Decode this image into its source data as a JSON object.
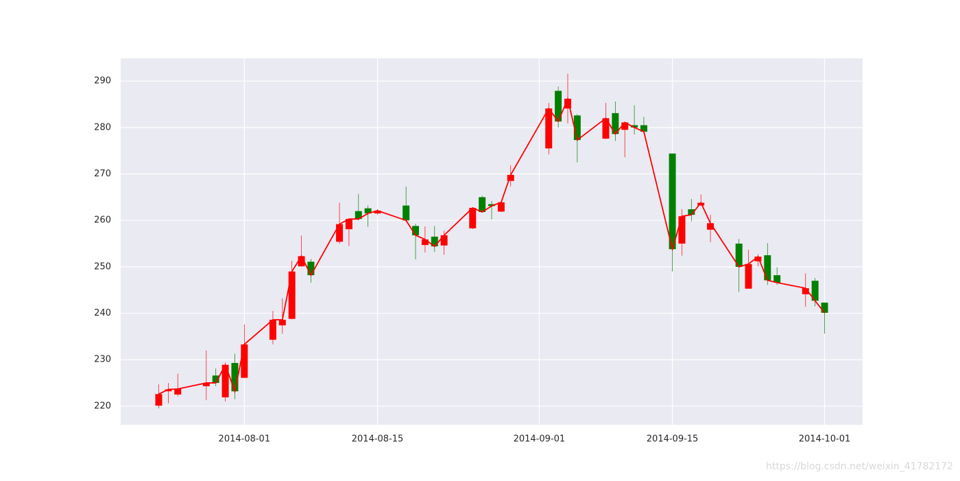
{
  "chart_data": {
    "type": "candlestick",
    "x": [
      "2014-07-23",
      "2014-07-24",
      "2014-07-25",
      "2014-07-28",
      "2014-07-29",
      "2014-07-30",
      "2014-07-31",
      "2014-08-01",
      "2014-08-04",
      "2014-08-05",
      "2014-08-06",
      "2014-08-07",
      "2014-08-08",
      "2014-08-11",
      "2014-08-12",
      "2014-08-13",
      "2014-08-14",
      "2014-08-15",
      "2014-08-18",
      "2014-08-19",
      "2014-08-20",
      "2014-08-21",
      "2014-08-22",
      "2014-08-25",
      "2014-08-26",
      "2014-08-27",
      "2014-08-28",
      "2014-08-29",
      "2014-09-02",
      "2014-09-03",
      "2014-09-04",
      "2014-09-05",
      "2014-09-08",
      "2014-09-09",
      "2014-09-10",
      "2014-09-11",
      "2014-09-12",
      "2014-09-15",
      "2014-09-16",
      "2014-09-17",
      "2014-09-18",
      "2014-09-19",
      "2014-09-22",
      "2014-09-23",
      "2014-09-24",
      "2014-09-25",
      "2014-09-26",
      "2014-09-29",
      "2014-09-30",
      "2014-10-01"
    ],
    "open": [
      220.1,
      223.2,
      222.5,
      224.3,
      226.6,
      221.9,
      229.3,
      226.1,
      234.3,
      237.4,
      238.8,
      250.1,
      251.1,
      255.4,
      258.1,
      262.0,
      262.6,
      261.5,
      263.2,
      258.8,
      254.7,
      256.5,
      254.6,
      258.3,
      265.0,
      263.5,
      261.9,
      268.5,
      275.5,
      287.9,
      284.1,
      282.6,
      277.6,
      283.1,
      279.5,
      280.5,
      280.5,
      274.4,
      255.0,
      262.4,
      263.2,
      258.0,
      255.0,
      245.3,
      251.2,
      252.5,
      248.2,
      244.1,
      247.0,
      242.3
    ],
    "high": [
      224.7,
      225.0,
      227.0,
      232.0,
      228.1,
      229.4,
      231.3,
      237.6,
      240.5,
      243.2,
      251.3,
      256.7,
      251.7,
      263.8,
      260.3,
      265.7,
      263.2,
      262.4,
      267.3,
      259.3,
      258.7,
      258.8,
      257.8,
      262.7,
      265.3,
      264.2,
      263.9,
      271.9,
      285.3,
      288.8,
      291.6,
      282.9,
      285.3,
      285.6,
      281.1,
      284.8,
      282.3,
      274.4,
      262.4,
      264.6,
      265.6,
      261.2,
      256.0,
      253.7,
      252.7,
      255.1,
      249.9,
      248.6,
      247.6,
      242.3
    ],
    "low": [
      219.5,
      220.6,
      222.1,
      221.3,
      224.3,
      221.0,
      221.5,
      226.0,
      233.3,
      235.6,
      238.7,
      250.0,
      246.6,
      255.0,
      254.5,
      260.0,
      258.6,
      261.2,
      259.7,
      251.6,
      253.1,
      253.2,
      252.6,
      258.1,
      261.7,
      260.2,
      261.8,
      267.3,
      274.2,
      280.0,
      280.9,
      272.5,
      277.5,
      277.1,
      273.6,
      278.5,
      278.7,
      249.0,
      252.4,
      259.8,
      263.2,
      255.3,
      244.6,
      245.3,
      250.1,
      246.1,
      246.1,
      241.4,
      241.5,
      235.6
    ],
    "close": [
      222.6,
      223.6,
      223.7,
      225.0,
      225.0,
      228.9,
      223.2,
      233.3,
      238.6,
      238.6,
      249.0,
      252.3,
      248.2,
      259.2,
      260.3,
      260.3,
      261.5,
      262.1,
      260.0,
      256.8,
      255.9,
      254.4,
      256.8,
      262.7,
      261.8,
      263.1,
      263.9,
      269.8,
      284.1,
      281.3,
      286.2,
      277.3,
      282.0,
      278.6,
      281.1,
      280.0,
      279.1,
      253.8,
      260.9,
      261.2,
      263.8,
      259.4,
      250.0,
      250.6,
      252.2,
      247.1,
      246.6,
      245.4,
      242.7,
      240.1
    ],
    "up_color": "#ff0000",
    "down_color": "#008000",
    "line_color": "#ff0000",
    "xlim": [
      "2014-07-19",
      "2014-10-05"
    ],
    "xticks": [
      "2014-08-01",
      "2014-08-15",
      "2014-09-01",
      "2014-09-15",
      "2014-10-01"
    ],
    "ylim": [
      216.0,
      294.9
    ],
    "yticks": [
      220,
      230,
      240,
      250,
      260,
      270,
      280,
      290
    ],
    "grid": true
  },
  "watermark": "https://blog.csdn.net/weixin_41782172"
}
